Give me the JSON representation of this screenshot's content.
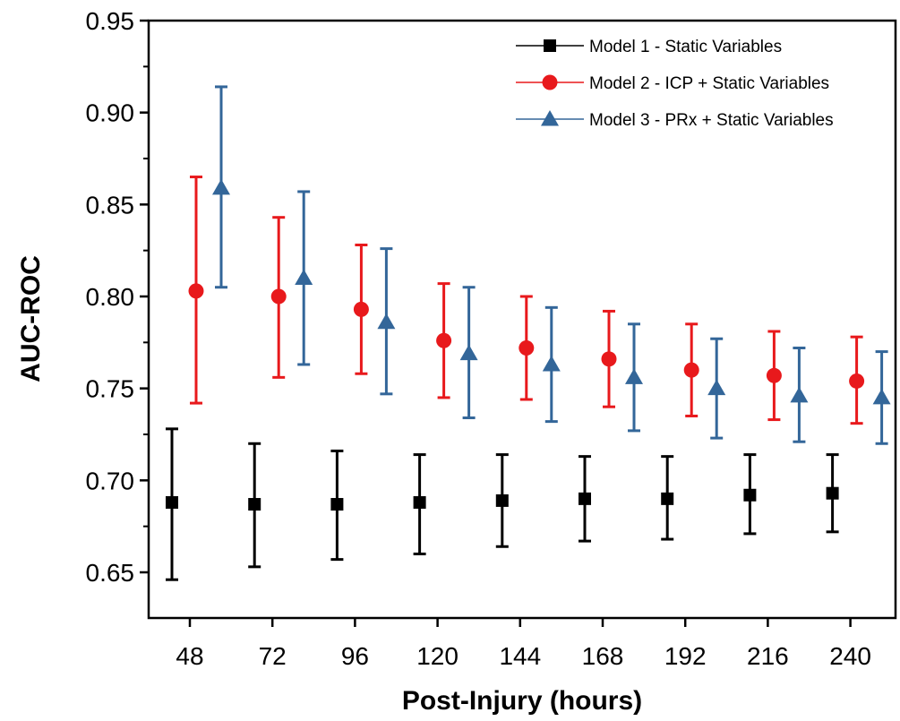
{
  "chart_data": {
    "type": "scatter",
    "xlabel": "Post-Injury (hours)",
    "ylabel": "AUC-ROC",
    "x_ticks": [
      "48",
      "72",
      "96",
      "120",
      "144",
      "168",
      "192",
      "216",
      "240"
    ],
    "y_ticks": [
      "0.65",
      "0.70",
      "0.75",
      "0.80",
      "0.85",
      "0.90",
      "0.95"
    ],
    "ylim": [
      0.625,
      0.95
    ],
    "legend_position": "top-right",
    "grid": false,
    "series": [
      {
        "name": "Model 1 - Static Variables",
        "color": "#000000",
        "marker": "square",
        "x": [
          48,
          72,
          96,
          120,
          144,
          168,
          192,
          216,
          240
        ],
        "y": [
          0.688,
          0.687,
          0.687,
          0.688,
          0.689,
          0.69,
          0.69,
          0.692,
          0.693
        ],
        "upper": [
          0.728,
          0.72,
          0.716,
          0.714,
          0.714,
          0.713,
          0.713,
          0.714,
          0.714
        ],
        "lower": [
          0.646,
          0.653,
          0.657,
          0.66,
          0.664,
          0.667,
          0.668,
          0.671,
          0.672
        ]
      },
      {
        "name": "Model 2 - ICP + Static Variables",
        "color": "#e8191c",
        "marker": "circle",
        "x": [
          48,
          72,
          96,
          120,
          144,
          168,
          192,
          216,
          240
        ],
        "y": [
          0.803,
          0.8,
          0.793,
          0.776,
          0.772,
          0.766,
          0.76,
          0.757,
          0.754
        ],
        "upper": [
          0.865,
          0.843,
          0.828,
          0.807,
          0.8,
          0.792,
          0.785,
          0.781,
          0.778
        ],
        "lower": [
          0.742,
          0.756,
          0.758,
          0.745,
          0.744,
          0.74,
          0.735,
          0.733,
          0.731
        ]
      },
      {
        "name": "Model 3 - PRx + Static Variables",
        "color": "#336699",
        "marker": "triangle",
        "x": [
          48,
          72,
          96,
          120,
          144,
          168,
          192,
          216,
          240
        ],
        "y": [
          0.859,
          0.81,
          0.786,
          0.769,
          0.763,
          0.756,
          0.75,
          0.746,
          0.745
        ],
        "upper": [
          0.914,
          0.857,
          0.826,
          0.805,
          0.794,
          0.785,
          0.777,
          0.772,
          0.77
        ],
        "lower": [
          0.805,
          0.763,
          0.747,
          0.734,
          0.732,
          0.727,
          0.723,
          0.721,
          0.72
        ]
      }
    ]
  }
}
